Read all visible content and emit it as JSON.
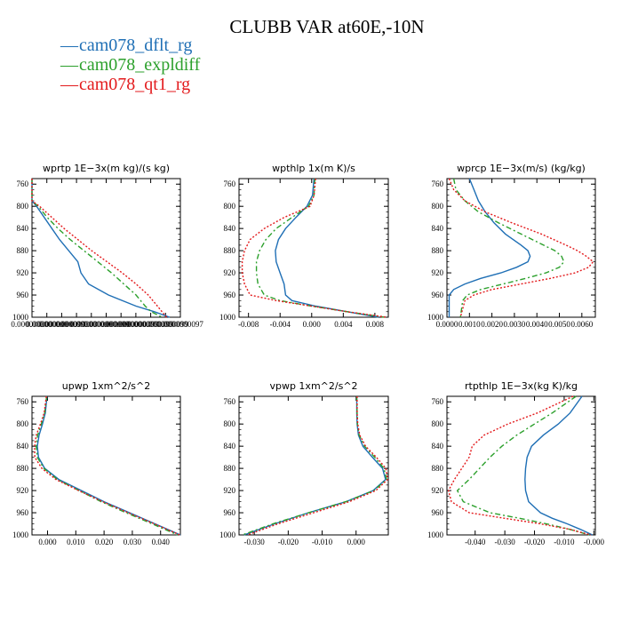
{
  "title": "CLUBB VAR at60E,-10N",
  "legend": [
    {
      "label": "cam078_dflt_rg",
      "color": "#1f6fb5"
    },
    {
      "label": "cam078_expldiff",
      "color": "#2ca02c"
    },
    {
      "label": "cam078_qt1_rg",
      "color": "#e31a1c"
    }
  ],
  "chart_data": [
    {
      "type": "line",
      "title": "wprtp  1E−3x(m kg)/(s kg)",
      "ylim": [
        1000,
        750
      ],
      "yticks": [
        "760",
        "800",
        "840",
        "880",
        "920",
        "960",
        "1000"
      ],
      "xlim": [
        0,
        9.7e-10
      ],
      "xticks": [
        "0.000000000",
        "0.000000000",
        "0.0000000099",
        "0.000000000",
        "0.000000000",
        "0.0000000099",
        "0.000000000",
        "0.0000000099",
        "0.0000000099",
        "0.0000000099",
        "0.0000000097"
      ],
      "series": [
        {
          "y": [
            750,
            790,
            800,
            820,
            840,
            860,
            880,
            900,
            920,
            940,
            960,
            980,
            990,
            1000
          ],
          "x": [
            0.0,
            0.0,
            3e-11,
            8e-11,
            1.3e-10,
            1.8e-10,
            2.4e-10,
            3e-10,
            3.2e-10,
            3.7e-10,
            5e-10,
            6.8e-10,
            8e-10,
            9e-10
          ]
        },
        {
          "y": [
            750,
            790,
            800,
            820,
            840,
            860,
            880,
            900,
            920,
            940,
            960,
            980,
            990,
            1000
          ],
          "x": [
            0.0,
            0.0,
            4e-11,
            1e-10,
            1.7e-10,
            2.5e-10,
            3.4e-10,
            4.3e-10,
            5.2e-10,
            6e-10,
            6.8e-10,
            7.4e-10,
            7.8e-10,
            8.5e-10
          ]
        },
        {
          "y": [
            750,
            790,
            800,
            820,
            840,
            860,
            880,
            900,
            920,
            940,
            960,
            980,
            990,
            1000
          ],
          "x": [
            0.0,
            0.0,
            5e-11,
            1.3e-10,
            2.1e-10,
            3e-10,
            3.9e-10,
            4.9e-10,
            5.9e-10,
            6.8e-10,
            7.6e-10,
            8.2e-10,
            8.5e-10,
            8.8e-10
          ]
        }
      ]
    },
    {
      "type": "line",
      "title": "wpthlp  1x(m K)/s",
      "ylim": [
        1000,
        750
      ],
      "yticks": [
        "760",
        "800",
        "840",
        "880",
        "920",
        "960",
        "1000"
      ],
      "xlim": [
        -0.0092,
        0.0097
      ],
      "xticks": [
        "-0.008",
        "-0.004",
        "0.000",
        "0.004",
        "0.008"
      ],
      "series": [
        {
          "y": [
            750,
            780,
            800,
            820,
            840,
            860,
            880,
            900,
            920,
            940,
            960,
            970,
            980,
            990,
            1000
          ],
          "x": [
            0.0003,
            0.0001,
            -0.0006,
            -0.002,
            -0.0033,
            -0.0042,
            -0.0046,
            -0.0045,
            -0.004,
            -0.0035,
            -0.0033,
            -0.0025,
            0.0005,
            0.0045,
            0.0085
          ]
        },
        {
          "y": [
            750,
            780,
            800,
            820,
            840,
            860,
            880,
            900,
            920,
            940,
            960,
            970,
            980,
            990,
            1000
          ],
          "x": [
            0.0004,
            0.0003,
            -0.0004,
            -0.0025,
            -0.0045,
            -0.0058,
            -0.0066,
            -0.007,
            -0.007,
            -0.0068,
            -0.006,
            -0.004,
            0.0,
            0.0045,
            0.0092
          ]
        },
        {
          "y": [
            750,
            780,
            800,
            820,
            840,
            860,
            880,
            900,
            920,
            940,
            960,
            970,
            980,
            990,
            1000
          ],
          "x": [
            0.0005,
            0.0003,
            -0.0002,
            -0.0035,
            -0.006,
            -0.0078,
            -0.0085,
            -0.0088,
            -0.0088,
            -0.0085,
            -0.0078,
            -0.0045,
            0.0,
            0.0045,
            0.0095
          ]
        }
      ]
    },
    {
      "type": "line",
      "title": "wprcp  1E−3x(m/s) (kg/kg)",
      "ylim": [
        1000,
        750
      ],
      "yticks": [
        "760",
        "800",
        "840",
        "880",
        "920",
        "960",
        "1000"
      ],
      "xlim": [
        0,
        0.0066
      ],
      "xticks": [
        "0.0000",
        "0.0010",
        "0.0020",
        "0.0030",
        "0.0040",
        "0.0050",
        "0.0060"
      ],
      "series": [
        {
          "y": [
            750,
            770,
            790,
            810,
            830,
            850,
            870,
            880,
            890,
            900,
            910,
            920,
            930,
            940,
            950,
            960,
            970,
            1000
          ],
          "x": [
            0.001,
            0.0012,
            0.0014,
            0.0017,
            0.0021,
            0.0026,
            0.0033,
            0.0036,
            0.0037,
            0.0036,
            0.0031,
            0.0024,
            0.0015,
            0.0008,
            0.0003,
            0.0001,
            0.0001,
            0.0001
          ]
        },
        {
          "y": [
            750,
            770,
            790,
            810,
            830,
            850,
            870,
            880,
            890,
            900,
            910,
            920,
            930,
            940,
            950,
            960,
            970,
            1000
          ],
          "x": [
            0.0003,
            0.0004,
            0.0008,
            0.0014,
            0.0023,
            0.0033,
            0.0043,
            0.0048,
            0.0051,
            0.0052,
            0.005,
            0.0044,
            0.0035,
            0.0025,
            0.0015,
            0.0009,
            0.0007,
            0.0006
          ]
        },
        {
          "y": [
            750,
            770,
            790,
            810,
            830,
            850,
            870,
            880,
            890,
            900,
            910,
            920,
            930,
            940,
            950,
            960,
            970,
            1000
          ],
          "x": [
            0.0001,
            0.0003,
            0.0008,
            0.0017,
            0.0029,
            0.0042,
            0.0053,
            0.0058,
            0.0062,
            0.0065,
            0.0063,
            0.0057,
            0.0046,
            0.0033,
            0.002,
            0.0012,
            0.0008,
            0.0006
          ]
        }
      ]
    },
    {
      "type": "line",
      "title": "upwp  1xm^2/s^2",
      "ylim": [
        1000,
        750
      ],
      "yticks": [
        "760",
        "800",
        "840",
        "880",
        "920",
        "960",
        "1000"
      ],
      "xlim": [
        -0.0055,
        0.047
      ],
      "xticks": [
        "0.000",
        "0.010",
        "0.020",
        "0.030",
        "0.040"
      ],
      "series": [
        {
          "y": [
            750,
            780,
            800,
            820,
            840,
            860,
            880,
            900,
            920,
            940,
            960,
            980,
            1000
          ],
          "x": [
            -0.0002,
            -0.0008,
            -0.0018,
            -0.003,
            -0.0036,
            -0.0032,
            -0.001,
            0.004,
            0.012,
            0.02,
            0.029,
            0.038,
            0.047
          ]
        },
        {
          "y": [
            750,
            780,
            800,
            820,
            840,
            860,
            880,
            900,
            920,
            940,
            960,
            980,
            1000
          ],
          "x": [
            -0.0003,
            -0.001,
            -0.0022,
            -0.0035,
            -0.004,
            -0.0036,
            -0.0013,
            0.0035,
            0.0112,
            0.019,
            0.0278,
            0.037,
            0.046
          ]
        },
        {
          "y": [
            750,
            780,
            800,
            820,
            840,
            860,
            880,
            900,
            920,
            940,
            960,
            980,
            1000
          ],
          "x": [
            -0.0004,
            -0.0012,
            -0.0025,
            -0.004,
            -0.0046,
            -0.0045,
            -0.002,
            0.003,
            0.011,
            0.0195,
            0.0285,
            0.0378,
            0.0468
          ]
        }
      ]
    },
    {
      "type": "line",
      "title": "vpwp  1xm^2/s^2",
      "ylim": [
        1000,
        750
      ],
      "yticks": [
        "760",
        "800",
        "840",
        "880",
        "920",
        "960",
        "1000"
      ],
      "xlim": [
        -0.0345,
        0.0095
      ],
      "xticks": [
        "-0.030",
        "-0.020",
        "-0.010",
        "0.000"
      ],
      "series": [
        {
          "y": [
            750,
            780,
            800,
            820,
            840,
            860,
            880,
            900,
            920,
            940,
            960,
            980,
            1000
          ],
          "x": [
            0.0002,
            0.0002,
            0.0003,
            0.0007,
            0.002,
            0.0048,
            0.0078,
            0.0087,
            0.005,
            -0.003,
            -0.014,
            -0.024,
            -0.033
          ]
        },
        {
          "y": [
            750,
            780,
            800,
            820,
            840,
            860,
            880,
            900,
            920,
            940,
            960,
            980,
            1000
          ],
          "x": [
            0.0002,
            0.0003,
            0.0004,
            0.0009,
            0.0025,
            0.0055,
            0.0082,
            0.009,
            0.0052,
            -0.003,
            -0.014,
            -0.0245,
            -0.0335
          ]
        },
        {
          "y": [
            750,
            780,
            800,
            820,
            840,
            860,
            880,
            900,
            920,
            940,
            960,
            980,
            1000
          ],
          "x": [
            0.0003,
            0.0003,
            0.0005,
            0.0011,
            0.0028,
            0.006,
            0.0088,
            0.0093,
            0.0058,
            -0.002,
            -0.0125,
            -0.023,
            -0.032
          ]
        }
      ]
    },
    {
      "type": "line",
      "title": "rtpthlp  1E−3x(kg K)/kg",
      "ylim": [
        1000,
        750
      ],
      "yticks": [
        "760",
        "800",
        "840",
        "880",
        "920",
        "960",
        "1000"
      ],
      "xlim": [
        -0.0495,
        0.0005
      ],
      "xticks": [
        "-0.040",
        "-0.030",
        "-0.020",
        "-0.010",
        "-0.000"
      ],
      "series": [
        {
          "y": [
            750,
            780,
            800,
            820,
            840,
            860,
            880,
            900,
            920,
            940,
            960,
            970,
            980,
            990,
            1000
          ],
          "x": [
            -0.004,
            -0.008,
            -0.012,
            -0.017,
            -0.021,
            -0.0225,
            -0.023,
            -0.0232,
            -0.023,
            -0.022,
            -0.018,
            -0.014,
            -0.009,
            -0.0045,
            -0.0005
          ]
        },
        {
          "y": [
            750,
            780,
            800,
            820,
            840,
            860,
            880,
            900,
            920,
            940,
            960,
            970,
            980,
            990,
            1000
          ],
          "x": [
            -0.006,
            -0.014,
            -0.02,
            -0.026,
            -0.031,
            -0.035,
            -0.0385,
            -0.042,
            -0.046,
            -0.044,
            -0.035,
            -0.025,
            -0.016,
            -0.008,
            -0.0015
          ]
        },
        {
          "y": [
            750,
            780,
            800,
            820,
            840,
            860,
            880,
            900,
            920,
            940,
            960,
            970,
            980,
            990,
            1000
          ],
          "x": [
            -0.007,
            -0.019,
            -0.029,
            -0.037,
            -0.041,
            -0.042,
            -0.0445,
            -0.047,
            -0.049,
            -0.048,
            -0.042,
            -0.03,
            -0.018,
            -0.008,
            -0.001
          ]
        }
      ]
    }
  ]
}
